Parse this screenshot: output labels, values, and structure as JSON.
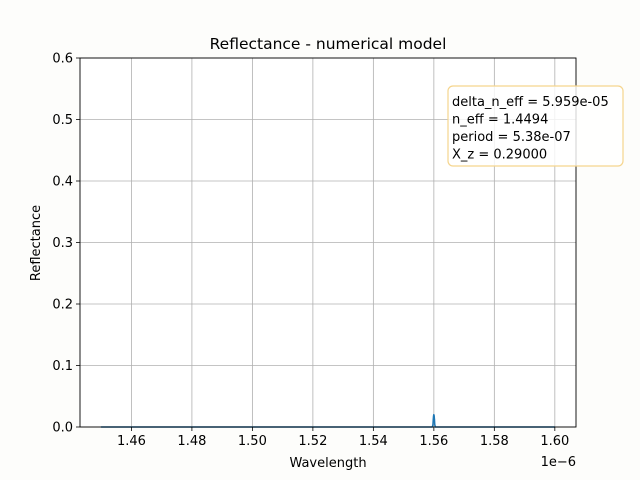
{
  "chart_data": {
    "type": "line",
    "title": "Reflectance - numerical model",
    "xlabel": "Wavelength",
    "ylabel": "Reflectance",
    "x_offset_label": "1e−6",
    "xlim": [
      1.443e-06,
      1.607e-06
    ],
    "ylim": [
      0,
      0.6
    ],
    "xticks": [
      1.46e-06,
      1.48e-06,
      1.5e-06,
      1.52e-06,
      1.54e-06,
      1.56e-06,
      1.58e-06,
      1.6e-06
    ],
    "xtick_labels": [
      "1.46",
      "1.48",
      "1.50",
      "1.52",
      "1.54",
      "1.56",
      "1.58",
      "1.60"
    ],
    "yticks": [
      0.0,
      0.1,
      0.2,
      0.3,
      0.4,
      0.5,
      0.6
    ],
    "ytick_labels": [
      "0.0",
      "0.1",
      "0.2",
      "0.3",
      "0.4",
      "0.5",
      "0.6"
    ],
    "grid": true,
    "series": [
      {
        "color": "#1f77b4",
        "x": [
          1.45e-06,
          1.5595e-06,
          1.5597e-06,
          1.5598e-06,
          1.5599e-06,
          1.56e-06,
          1.5601e-06,
          1.5602e-06,
          1.5603e-06,
          1.5605e-06,
          1.6e-06
        ],
        "y": [
          0.0,
          0.0,
          0.004,
          0.012,
          0.018,
          0.02,
          0.018,
          0.012,
          0.004,
          0.0,
          0.0
        ]
      }
    ],
    "annotation": {
      "lines": [
        "delta_n_eff = 5.959e-05",
        "n_eff = 1.4494",
        "period = 5.38e-07",
        "X_z = 0.29000"
      ],
      "placement": "upper-right",
      "border_color": "#f5d58e"
    }
  }
}
